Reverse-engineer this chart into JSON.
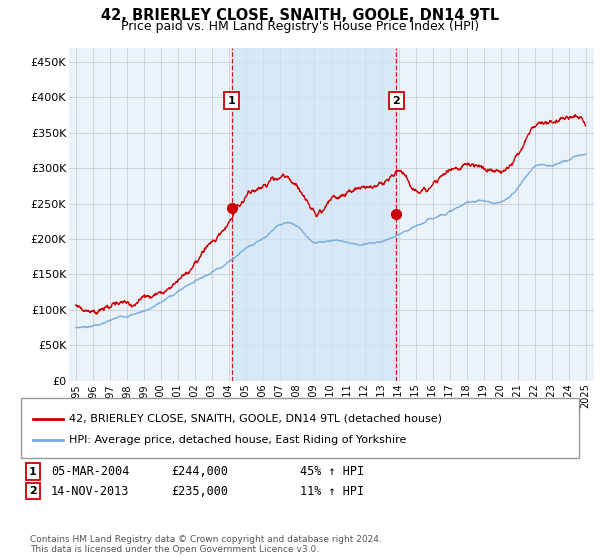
{
  "title": "42, BRIERLEY CLOSE, SNAITH, GOOLE, DN14 9TL",
  "subtitle": "Price paid vs. HM Land Registry's House Price Index (HPI)",
  "title_fontsize": 10.5,
  "subtitle_fontsize": 9,
  "ylim": [
    0,
    470000
  ],
  "yticks": [
    0,
    50000,
    100000,
    150000,
    200000,
    250000,
    300000,
    350000,
    400000,
    450000
  ],
  "ytick_labels": [
    "£0",
    "£50K",
    "£100K",
    "£150K",
    "£200K",
    "£250K",
    "£300K",
    "£350K",
    "£400K",
    "£450K"
  ],
  "xtick_years": [
    1995,
    1996,
    1997,
    1998,
    1999,
    2000,
    2001,
    2002,
    2003,
    2004,
    2005,
    2006,
    2007,
    2008,
    2009,
    2010,
    2011,
    2012,
    2013,
    2014,
    2015,
    2016,
    2017,
    2018,
    2019,
    2020,
    2021,
    2022,
    2023,
    2024,
    2025
  ],
  "legend_entries": [
    "42, BRIERLEY CLOSE, SNAITH, GOOLE, DN14 9TL (detached house)",
    "HPI: Average price, detached house, East Riding of Yorkshire"
  ],
  "legend_colors": [
    "#cc0000",
    "#7aaddd"
  ],
  "footer": "Contains HM Land Registry data © Crown copyright and database right 2024.\nThis data is licensed under the Open Government Licence v3.0.",
  "marker1_x": 2004.17,
  "marker1_y": 244000,
  "marker2_x": 2013.87,
  "marker2_y": 235000,
  "vline1_x": 2004.17,
  "vline2_x": 2013.87,
  "plot_bg": "#eaf2fb",
  "shade_color": "#d0e4f5",
  "grid_color": "#cccccc",
  "red_line_color": "#cc0000",
  "blue_line_color": "#7aaddd",
  "box1_label": "1",
  "box2_label": "2",
  "ann1_date": "05-MAR-2004",
  "ann1_price": "£244,000",
  "ann1_hpi": "45% ↑ HPI",
  "ann2_date": "14-NOV-2013",
  "ann2_price": "£235,000",
  "ann2_hpi": "11% ↑ HPI"
}
